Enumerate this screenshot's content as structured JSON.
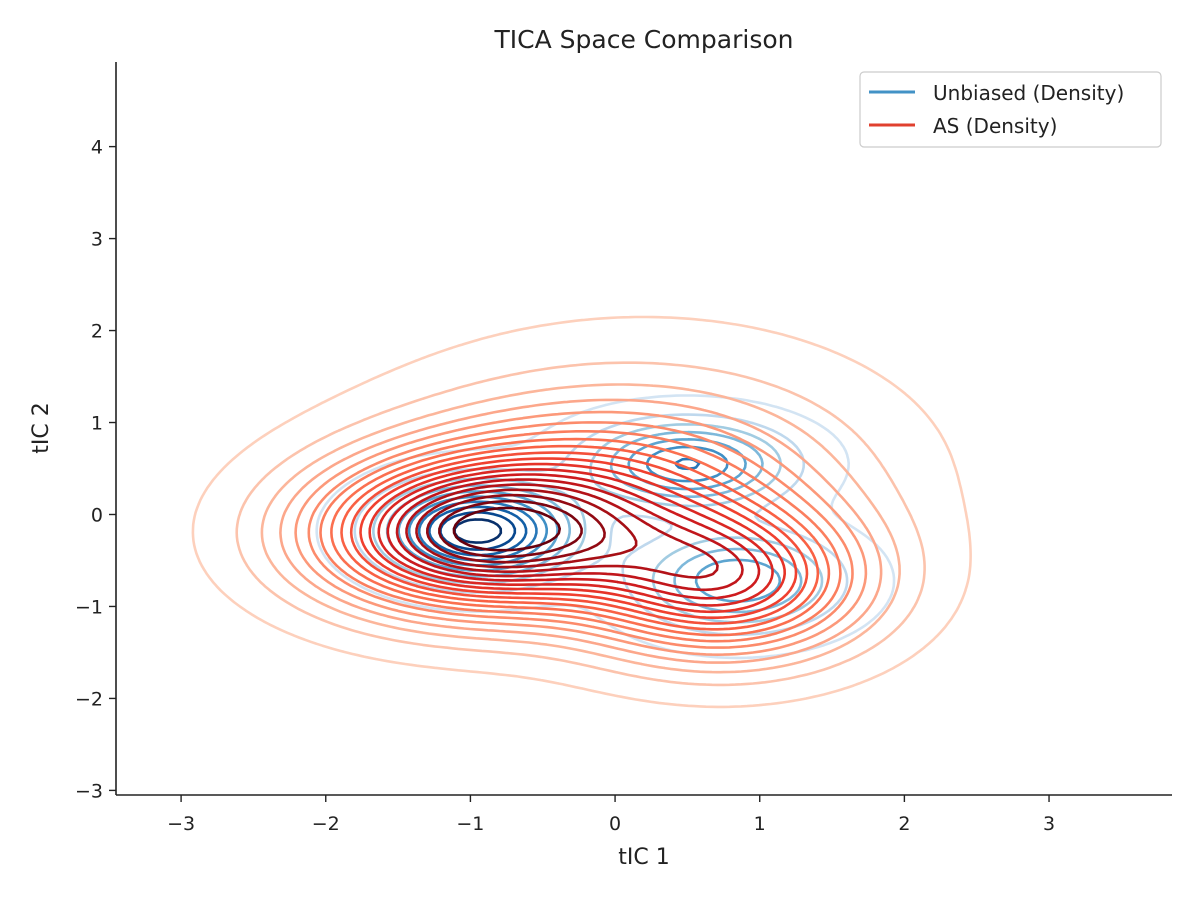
{
  "chart_data": {
    "type": "contour",
    "title": "TICA Space Comparison",
    "xlabel": "tIC 1",
    "ylabel": "tIC 2",
    "xlim": [
      -3.45,
      3.85
    ],
    "ylim": [
      -3.05,
      4.92
    ],
    "xticks": [
      -3,
      -2,
      -1,
      0,
      1,
      2,
      3
    ],
    "yticks": [
      -3,
      -2,
      -1,
      0,
      1,
      2,
      3,
      4
    ],
    "xtick_labels": [
      "−3",
      "−2",
      "−1",
      "0",
      "1",
      "2",
      "3"
    ],
    "ytick_labels": [
      "−3",
      "−2",
      "−1",
      "0",
      "1",
      "2",
      "3",
      "4"
    ],
    "grid": false,
    "legend_position": "top-right",
    "series": [
      {
        "name": "Unbiased (Density)",
        "colormap": "Blues",
        "legend_color": "#4292c6",
        "levels": 10,
        "modes": [
          {
            "x": -0.95,
            "y": -0.18,
            "sx": 0.42,
            "sy": 0.33,
            "rho": 0.0,
            "w": 0.45
          },
          {
            "x": 0.5,
            "y": 0.55,
            "sx": 0.45,
            "sy": 0.3,
            "rho": 0.0,
            "w": 0.28
          },
          {
            "x": 0.85,
            "y": -0.72,
            "sx": 0.45,
            "sy": 0.35,
            "rho": 0.0,
            "w": 0.27
          }
        ]
      },
      {
        "name": "AS (Density)",
        "colormap": "Reds",
        "legend_color": "#e0402f",
        "levels": 20,
        "modes": [
          {
            "x": -0.95,
            "y": -0.22,
            "sx": 0.75,
            "sy": 0.55,
            "rho": 0.0,
            "w": 0.42
          },
          {
            "x": 0.05,
            "y": 0.35,
            "sx": 0.9,
            "sy": 0.65,
            "rho": 0.0,
            "w": 0.22
          },
          {
            "x": 0.75,
            "y": -0.72,
            "sx": 0.65,
            "sy": 0.55,
            "rho": 0.0,
            "w": 0.26
          },
          {
            "x": 0.3,
            "y": 0.7,
            "sx": 1.4,
            "sy": 1.2,
            "rho": 0.0,
            "w": 0.1
          }
        ]
      }
    ]
  }
}
